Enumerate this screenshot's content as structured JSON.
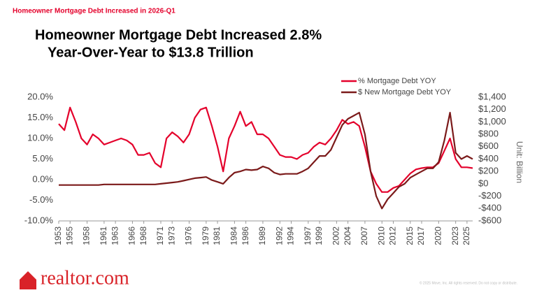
{
  "header": "Homeowner Mortgage Debt Increased in 2026-Q1",
  "chart_data": {
    "type": "line",
    "title": [
      "Homeowner Mortgage Debt Increased 2.8%",
      "Year-Over-Year to $13.8 Trillion"
    ],
    "y2label": "Unit: Billion",
    "x": [
      1953,
      1954,
      1955,
      1956,
      1957,
      1958,
      1959,
      1960,
      1961,
      1962,
      1963,
      1964,
      1965,
      1966,
      1967,
      1968,
      1969,
      1970,
      1971,
      1972,
      1973,
      1974,
      1975,
      1976,
      1977,
      1978,
      1979,
      1980,
      1981,
      1982,
      1983,
      1984,
      1985,
      1986,
      1987,
      1988,
      1989,
      1990,
      1991,
      1992,
      1993,
      1994,
      1995,
      1996,
      1997,
      1998,
      1999,
      2000,
      2001,
      2002,
      2003,
      2004,
      2005,
      2006,
      2007,
      2008,
      2009,
      2010,
      2011,
      2012,
      2013,
      2014,
      2015,
      2016,
      2017,
      2018,
      2019,
      2020,
      2021,
      2022,
      2023,
      2024,
      2025,
      2026
    ],
    "series": [
      {
        "name": "% Mortgage Debt YOY",
        "color": "#e4002b",
        "values": [
          13.5,
          12,
          17.5,
          14,
          10,
          8.5,
          11,
          10,
          8.5,
          9,
          9.5,
          10,
          9.5,
          8.5,
          6,
          6,
          6.5,
          4,
          3,
          10,
          11.5,
          10.5,
          9,
          11,
          15,
          17,
          17.5,
          13,
          8,
          2,
          10,
          13,
          16.5,
          13,
          14,
          11,
          11,
          10,
          8,
          6,
          5.5,
          5.5,
          5,
          6,
          6.5,
          8,
          9,
          8.5,
          10,
          12,
          14.5,
          13.5,
          14,
          13,
          8,
          2,
          -1,
          -3,
          -3,
          -2,
          -1.5,
          0,
          1.5,
          2.5,
          2.8,
          3,
          3,
          4,
          7,
          10,
          5,
          3,
          3,
          2.8
        ]
      },
      {
        "name": "$ New Mortgage Debt YOY",
        "color": "#7b1a1a",
        "axis": "y2",
        "values": [
          -20,
          -20,
          -20,
          -20,
          -20,
          -20,
          -20,
          -20,
          -10,
          -10,
          -10,
          -10,
          -10,
          -10,
          -10,
          -10,
          -10,
          -10,
          0,
          10,
          20,
          30,
          50,
          70,
          90,
          100,
          110,
          60,
          30,
          0,
          100,
          180,
          200,
          230,
          220,
          230,
          280,
          250,
          180,
          150,
          160,
          160,
          160,
          200,
          250,
          350,
          450,
          450,
          550,
          750,
          950,
          1050,
          1100,
          1150,
          800,
          200,
          -200,
          -400,
          -250,
          -150,
          -50,
          0,
          100,
          150,
          200,
          250,
          250,
          350,
          700,
          1150,
          500,
          400,
          450,
          400
        ]
      }
    ],
    "xlim": [
      1953,
      2026
    ],
    "xticks": [
      1953,
      1955,
      1958,
      1961,
      1963,
      1966,
      1968,
      1971,
      1973,
      1976,
      1979,
      1981,
      1984,
      1986,
      1989,
      1992,
      1994,
      1997,
      1999,
      2002,
      2004,
      2007,
      2010,
      2012,
      2015,
      2017,
      2020,
      2023,
      2025
    ],
    "ylim": [
      -10,
      20
    ],
    "yticks": [
      {
        "value": -10,
        "label": "-10.0%"
      },
      {
        "value": -5,
        "label": "-5.0%"
      },
      {
        "value": 0,
        "label": "0.0%"
      },
      {
        "value": 5,
        "label": "5.0%"
      },
      {
        "value": 10,
        "label": "10.0%"
      },
      {
        "value": 15,
        "label": "15.0%"
      },
      {
        "value": 20,
        "label": "20.0%"
      }
    ],
    "y2lim": [
      -600,
      1400
    ],
    "y2ticks": [
      {
        "value": -600,
        "label": "-$600"
      },
      {
        "value": -400,
        "label": "-$400"
      },
      {
        "value": -200,
        "label": "-$200"
      },
      {
        "value": 0,
        "label": "$0"
      },
      {
        "value": 200,
        "label": "$200"
      },
      {
        "value": 400,
        "label": "$400"
      },
      {
        "value": 600,
        "label": "$600"
      },
      {
        "value": 800,
        "label": "$800"
      },
      {
        "value": 1000,
        "label": "$1,000"
      },
      {
        "value": 1200,
        "label": "$1,200"
      },
      {
        "value": 1400,
        "label": "$1,400"
      }
    ],
    "grid": false,
    "legend": "top"
  },
  "logo": "realtor.com",
  "footnote": "© 2025 Move, Inc. All rights reserved. Do not copy or distribute."
}
